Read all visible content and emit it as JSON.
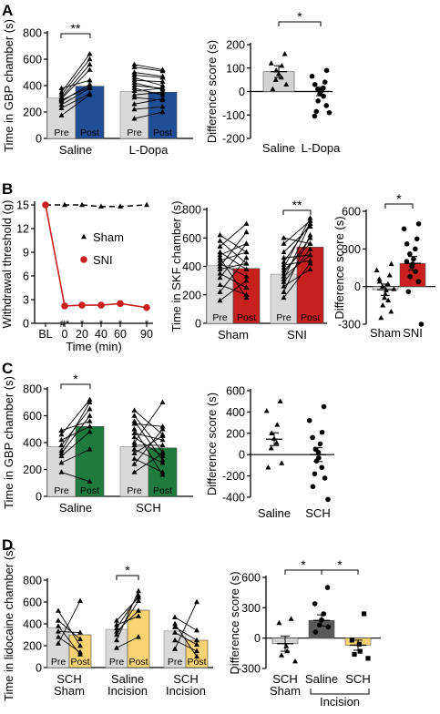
{
  "colors": {
    "pre": "#d9d9d9",
    "blue": "#1f4e96",
    "red": "#c8201e",
    "green": "#1e7b3e",
    "yellow": "#fcd372",
    "dark": "#5a5a5a",
    "axis": "#000000"
  },
  "labels": {
    "pre": "Pre",
    "post": "Post",
    "sig_double": "**",
    "sig_single": "*"
  },
  "panels": {
    "A": {
      "letter": "A"
    },
    "B": {
      "letter": "B"
    },
    "C": {
      "letter": "C"
    },
    "D": {
      "letter": "D"
    }
  },
  "chart_data": [
    {
      "id": "A1",
      "type": "bar",
      "ylabel": "Time in GBP chamber (s)",
      "ylim": [
        0,
        800
      ],
      "yticks": [
        "0",
        "200",
        "400",
        "600",
        "800"
      ],
      "groups": [
        "Saline",
        "L-Dopa"
      ],
      "series": [
        {
          "name": "Pre",
          "values": [
            305,
            355
          ]
        },
        {
          "name": "Post",
          "values": [
            395,
            350
          ]
        }
      ],
      "pairs": [
        {
          "group": "Saline",
          "pre": [
            175,
            230,
            255,
            280,
            290,
            300,
            310,
            330,
            350,
            380
          ],
          "post": [
            330,
            340,
            380,
            410,
            390,
            520,
            560,
            600,
            640,
            440
          ]
        },
        {
          "group": "L-Dopa",
          "pre": [
            150,
            220,
            260,
            310,
            330,
            360,
            380,
            400,
            420,
            440,
            460,
            480,
            500,
            540,
            560
          ],
          "post": [
            200,
            240,
            300,
            290,
            350,
            380,
            330,
            380,
            370,
            430,
            400,
            460,
            470,
            510,
            520
          ]
        }
      ],
      "significance": [
        {
          "between": "Saline pre-post",
          "label": "**"
        }
      ]
    },
    {
      "id": "A2",
      "type": "bar",
      "ylabel": "Difference score (s)",
      "ylim": [
        -200,
        200
      ],
      "yticks": [
        "-200",
        "-100",
        "0",
        "100",
        "200"
      ],
      "categories": [
        "Saline",
        "L-Dopa"
      ],
      "values": [
        85,
        0
      ],
      "error": [
        25,
        18
      ],
      "points": [
        [
          160,
          120,
          110,
          90,
          75,
          60,
          50,
          30,
          10
        ],
        [
          90,
          65,
          40,
          30,
          15,
          10,
          5,
          0,
          -10,
          -20,
          -40,
          -60,
          -85,
          -90,
          -105
        ]
      ],
      "markers": [
        "triangle",
        "circle"
      ],
      "significance": [
        {
          "between": "Saline vs L-Dopa",
          "label": "*"
        }
      ]
    },
    {
      "id": "B1",
      "type": "line",
      "ylabel": "Withdrawal threshold (g)",
      "xlabel": "Time (min)",
      "x": [
        "BL",
        "0",
        "20",
        "40",
        "60",
        "90"
      ],
      "ylim": [
        0,
        15
      ],
      "yticks": [
        "0",
        "3",
        "6",
        "9",
        "12",
        "15"
      ],
      "series": [
        {
          "name": "Sham",
          "values": [
            15,
            15,
            15,
            14.8,
            14.8,
            15
          ]
        },
        {
          "name": "SNI",
          "values": [
            15,
            2.2,
            2.3,
            2.3,
            2.5,
            2.0
          ]
        }
      ],
      "annotations": [
        "#*",
        "*",
        "*",
        "*",
        "*"
      ]
    },
    {
      "id": "B2",
      "type": "bar",
      "ylabel": "Time in SKF chamber (s)",
      "ylim": [
        0,
        800
      ],
      "yticks": [
        "0",
        "200",
        "400",
        "600",
        "800"
      ],
      "groups": [
        "Sham",
        "SNI"
      ],
      "series": [
        {
          "name": "Pre",
          "values": [
            405,
            345
          ]
        },
        {
          "name": "Post",
          "values": [
            385,
            535
          ]
        }
      ],
      "pairs": [
        {
          "group": "Sham",
          "pre": [
            160,
            220,
            270,
            320,
            350,
            380,
            400,
            420,
            440,
            460,
            480,
            500,
            540,
            580,
            620
          ],
          "post": [
            300,
            460,
            200,
            560,
            250,
            420,
            640,
            330,
            500,
            180,
            560,
            380,
            700,
            420,
            500
          ]
        },
        {
          "group": "SNI",
          "pre": [
            180,
            220,
            260,
            290,
            310,
            330,
            350,
            370,
            390,
            410,
            430,
            460,
            500,
            560,
            600
          ],
          "post": [
            420,
            620,
            380,
            520,
            700,
            480,
            600,
            560,
            740,
            440,
            700,
            480,
            680,
            720,
            560
          ]
        }
      ],
      "significance": [
        {
          "between": "SNI pre-post",
          "label": "**"
        }
      ]
    },
    {
      "id": "B3",
      "type": "bar",
      "ylabel": "Difference score (s)",
      "ylim": [
        -300,
        600
      ],
      "yticks": [
        "-300",
        "0",
        "300",
        "600"
      ],
      "categories": [
        "Sham",
        "SNI"
      ],
      "values": [
        -25,
        185
      ],
      "error": [
        45,
        55
      ],
      "points": [
        [
          180,
          130,
          90,
          40,
          20,
          0,
          -30,
          -60,
          -90,
          -110,
          -150,
          -200,
          -250,
          -20,
          60
        ],
        [
          500,
          460,
          380,
          340,
          300,
          260,
          220,
          180,
          160,
          120,
          80,
          40,
          -40,
          -300,
          200
        ]
      ],
      "markers": [
        "triangle",
        "circle"
      ],
      "significance": [
        {
          "between": "Sham vs SNI",
          "label": "*"
        }
      ]
    },
    {
      "id": "C1",
      "type": "bar",
      "ylabel": "Time in GBP chamber (s)",
      "ylim": [
        0,
        800
      ],
      "yticks": [
        "0",
        "200",
        "400",
        "600",
        "800"
      ],
      "groups": [
        "Saline",
        "SCH"
      ],
      "series": [
        {
          "name": "Pre",
          "values": [
            370,
            370
          ]
        },
        {
          "name": "Post",
          "values": [
            520,
            360
          ]
        }
      ],
      "pairs": [
        {
          "group": "Saline",
          "pre": [
            180,
            250,
            300,
            320,
            340,
            380,
            420,
            460,
            490
          ],
          "post": [
            110,
            350,
            480,
            600,
            700,
            650,
            520,
            720,
            560
          ]
        },
        {
          "group": "SCH",
          "pre": [
            180,
            240,
            280,
            320,
            350,
            380,
            400,
            440,
            470,
            500,
            540,
            560,
            600,
            640
          ],
          "post": [
            320,
            500,
            180,
            450,
            250,
            380,
            700,
            300,
            420,
            160,
            520,
            270,
            330,
            460
          ]
        }
      ],
      "significance": [
        {
          "between": "Saline pre-post",
          "label": "*"
        }
      ]
    },
    {
      "id": "C2",
      "type": "bar",
      "ylabel": "Difference score (s)",
      "ylim": [
        -400,
        600
      ],
      "yticks": [
        "-400",
        "-200",
        "0",
        "200",
        "400",
        "600"
      ],
      "categories": [
        "Saline",
        "SCH"
      ],
      "values": [
        145,
        0
      ],
      "error": [
        60,
        65
      ],
      "points": [
        [
          500,
          410,
          280,
          200,
          150,
          110,
          60,
          -80,
          -120
        ],
        [
          450,
          320,
          210,
          160,
          100,
          50,
          20,
          -30,
          -60,
          -120,
          -180,
          -220,
          -300,
          -420
        ]
      ],
      "markers": [
        "triangle",
        "circle"
      ]
    },
    {
      "id": "D1",
      "type": "bar",
      "ylabel": "Time in lidocaine chamber (s)",
      "ylim": [
        0,
        800
      ],
      "yticks": [
        "0",
        "200",
        "400",
        "600",
        "800"
      ],
      "groups": [
        "SCH Sham",
        "Saline Incision",
        "SCH Incision"
      ],
      "series": [
        {
          "name": "Pre",
          "values": [
            365,
            350,
            335
          ]
        },
        {
          "name": "Post",
          "values": [
            300,
            525,
            250
          ]
        }
      ],
      "pairs": [
        {
          "group": "SCH Sham",
          "pre": [
            220,
            280,
            330,
            380,
            430,
            520
          ],
          "post": [
            610,
            140,
            320,
            120,
            260,
            200
          ]
        },
        {
          "group": "Saline Incision",
          "pre": [
            180,
            250,
            300,
            330,
            360,
            390,
            430
          ],
          "post": [
            280,
            700,
            610,
            520,
            660,
            470,
            640
          ]
        },
        {
          "group": "SCH Incision",
          "pre": [
            170,
            250,
            320,
            370,
            400,
            460
          ],
          "post": [
            600,
            150,
            210,
            250,
            100,
            340
          ]
        }
      ],
      "significance": [
        {
          "between": "Saline Incision pre-post",
          "label": "*"
        }
      ]
    },
    {
      "id": "D2",
      "type": "bar",
      "ylabel": "Difference score (s)",
      "ylim": [
        -300,
        600
      ],
      "yticks": [
        "-300",
        "0",
        "300",
        "600"
      ],
      "categories": [
        "SCH Sham",
        "Saline",
        "SCH"
      ],
      "category_lines": [
        [
          "SCH",
          "Sham"
        ],
        [
          "Saline",
          ""
        ],
        [
          "SCH",
          ""
        ]
      ],
      "bracket_label": "Incision",
      "values": [
        -55,
        175,
        -70
      ],
      "error": [
        75,
        55,
        50
      ],
      "points": [
        [
          190,
          150,
          -80,
          -130,
          -170,
          -230
        ],
        [
          500,
          340,
          240,
          180,
          130,
          110,
          60
        ],
        [
          240,
          -20,
          -60,
          -130,
          -160,
          -200
        ]
      ],
      "markers": [
        "triangle",
        "circle",
        "square"
      ],
      "significance": [
        {
          "between": "SCH Sham vs Saline Incision",
          "label": "*"
        },
        {
          "between": "Saline vs SCH Incision",
          "label": "*"
        }
      ]
    }
  ]
}
